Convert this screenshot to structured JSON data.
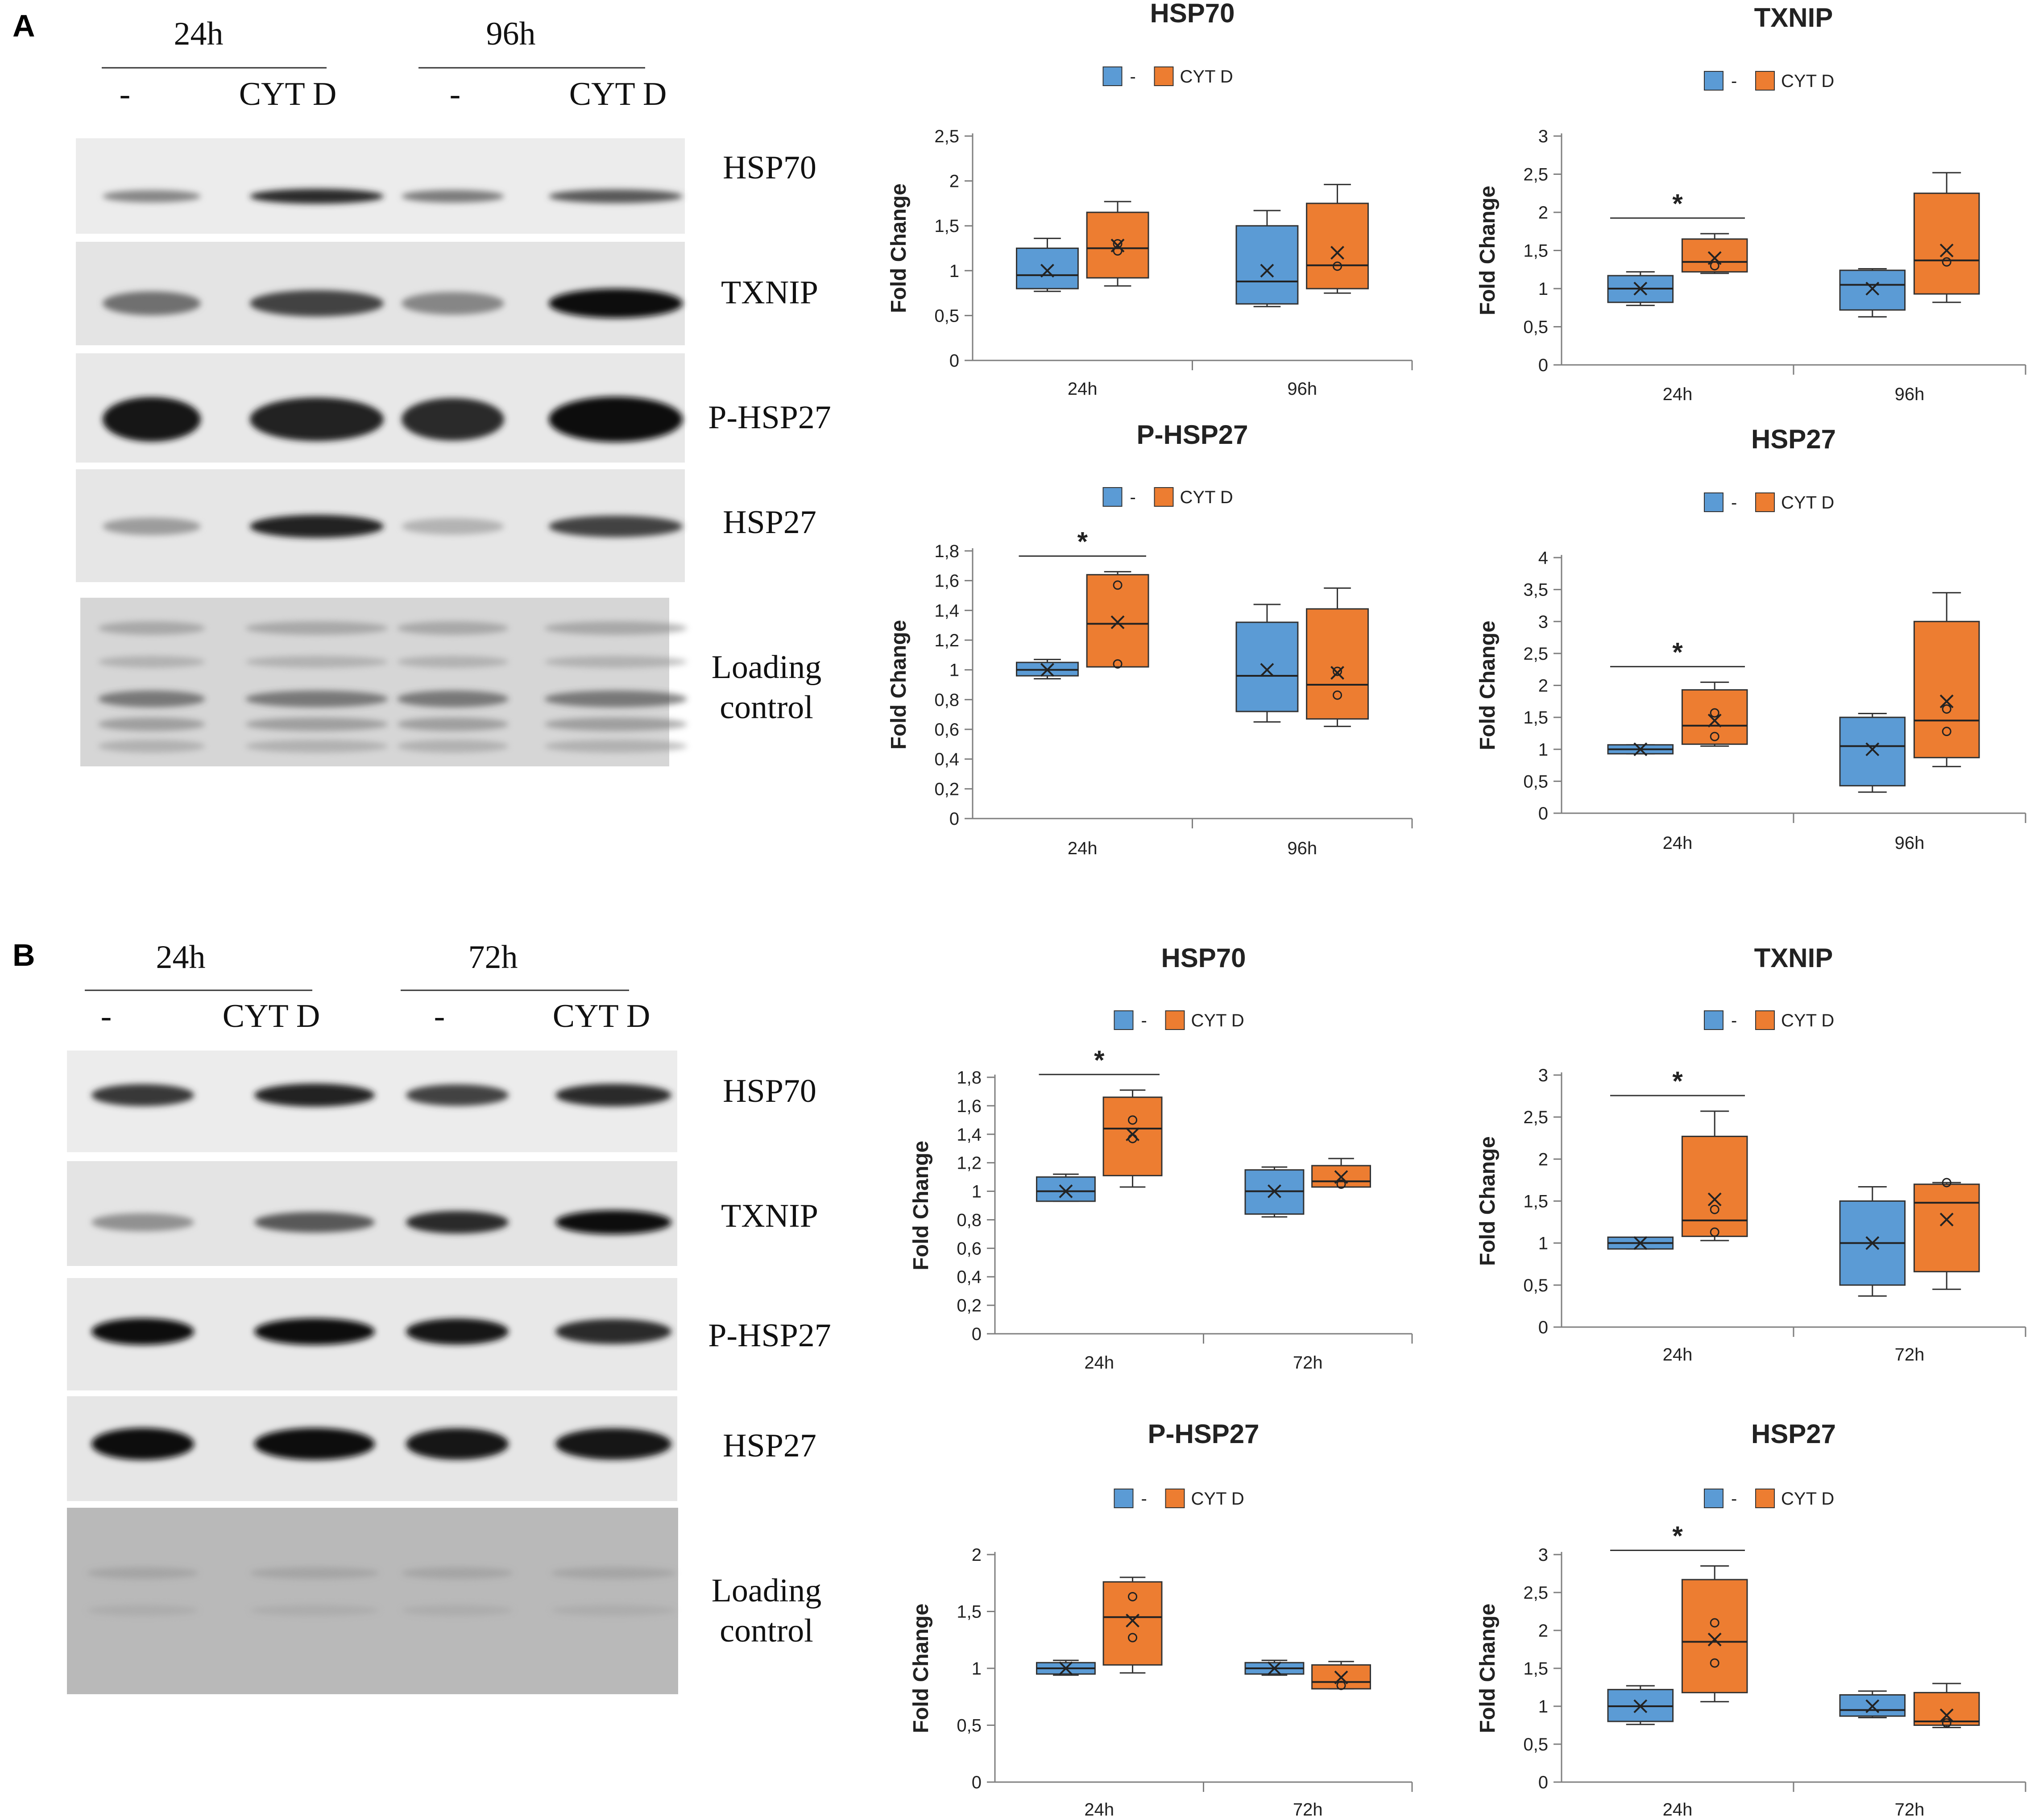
{
  "colors": {
    "control": "#5b9bd5",
    "treated": "#ed7d31",
    "axis": "#7f7f7f",
    "text": "#222222"
  },
  "legend": {
    "control_label": "-",
    "treated_label": "CYT D"
  },
  "panels": [
    {
      "letter": "A",
      "blot": {
        "time1": "24h",
        "time2": "96h",
        "lane_labels": [
          "-",
          "CYT D",
          "-",
          "CYT D"
        ],
        "bands": [
          "HSP70",
          "TXNIP",
          "P-HSP27",
          "HSP27"
        ],
        "loading": [
          "Loading",
          "control"
        ],
        "intensity": [
          [
            0.45,
            0.85,
            0.5,
            0.65
          ],
          [
            0.55,
            0.75,
            0.45,
            1.0
          ],
          [
            0.95,
            0.9,
            0.85,
            1.0
          ],
          [
            0.35,
            0.9,
            0.25,
            0.75
          ]
        ]
      }
    },
    {
      "letter": "B",
      "blot": {
        "time1": "24h",
        "time2": "72h",
        "lane_labels": [
          "-",
          "CYT D",
          "-",
          "CYT D"
        ],
        "bands": [
          "HSP70",
          "TXNIP",
          "P-HSP27",
          "HSP27"
        ],
        "loading": [
          "Loading",
          "control"
        ],
        "intensity": [
          [
            0.8,
            0.9,
            0.75,
            0.85
          ],
          [
            0.4,
            0.65,
            0.85,
            1.0
          ],
          [
            1.0,
            1.0,
            0.95,
            0.85
          ],
          [
            1.0,
            1.0,
            0.95,
            0.95
          ]
        ]
      }
    }
  ],
  "chart_data": [
    {
      "type": "box",
      "title": "HSP70",
      "ylabel": "Fold Change",
      "ylim": [
        0,
        2.5
      ],
      "yticks": [
        "0",
        "0,5",
        "1",
        "1,5",
        "2",
        "2,5"
      ],
      "categories": [
        "24h",
        "96h"
      ],
      "significance": [],
      "series": [
        {
          "name": "-",
          "boxes": [
            {
              "min": 0.77,
              "q1": 0.8,
              "median": 0.95,
              "q3": 1.25,
              "max": 1.36,
              "mean": 1.0,
              "points": []
            },
            {
              "min": 0.6,
              "q1": 0.63,
              "median": 0.88,
              "q3": 1.5,
              "max": 1.67,
              "mean": 1.0,
              "points": []
            }
          ]
        },
        {
          "name": "CYT D",
          "boxes": [
            {
              "min": 0.83,
              "q1": 0.92,
              "median": 1.25,
              "q3": 1.65,
              "max": 1.77,
              "mean": 1.28,
              "points": [
                1.22,
                1.3
              ]
            },
            {
              "min": 0.75,
              "q1": 0.8,
              "median": 1.06,
              "q3": 1.75,
              "max": 1.96,
              "mean": 1.2,
              "points": [
                1.05
              ]
            }
          ]
        }
      ]
    },
    {
      "type": "box",
      "title": "TXNIP",
      "ylabel": "Fold Change",
      "ylim": [
        0,
        3
      ],
      "yticks": [
        "0",
        "0,5",
        "1",
        "1,5",
        "2",
        "2,5",
        "3"
      ],
      "categories": [
        "24h",
        "96h"
      ],
      "significance": [
        0
      ],
      "series": [
        {
          "name": "-",
          "boxes": [
            {
              "min": 0.78,
              "q1": 0.82,
              "median": 1.0,
              "q3": 1.17,
              "max": 1.22,
              "mean": 1.0,
              "points": []
            },
            {
              "min": 0.63,
              "q1": 0.72,
              "median": 1.05,
              "q3": 1.24,
              "max": 1.26,
              "mean": 1.0,
              "points": []
            }
          ]
        },
        {
          "name": "CYT D",
          "boxes": [
            {
              "min": 1.2,
              "q1": 1.22,
              "median": 1.35,
              "q3": 1.65,
              "max": 1.72,
              "mean": 1.4,
              "points": [
                1.3
              ]
            },
            {
              "min": 0.82,
              "q1": 0.93,
              "median": 1.37,
              "q3": 2.25,
              "max": 2.52,
              "mean": 1.5,
              "points": [
                1.35
              ]
            }
          ]
        }
      ]
    },
    {
      "type": "box",
      "title": "P-HSP27",
      "ylabel": "Fold Change",
      "ylim": [
        0,
        1.8
      ],
      "yticks": [
        "0",
        "0,2",
        "0,4",
        "0,6",
        "0,8",
        "1",
        "1,2",
        "1,4",
        "1,6",
        "1,8"
      ],
      "categories": [
        "24h",
        "96h"
      ],
      "significance": [
        0
      ],
      "series": [
        {
          "name": "-",
          "boxes": [
            {
              "min": 0.94,
              "q1": 0.96,
              "median": 1.0,
              "q3": 1.05,
              "max": 1.07,
              "mean": 1.0,
              "points": []
            },
            {
              "min": 0.65,
              "q1": 0.72,
              "median": 0.96,
              "q3": 1.32,
              "max": 1.44,
              "mean": 1.0,
              "points": []
            }
          ]
        },
        {
          "name": "CYT D",
          "boxes": [
            {
              "min": 1.02,
              "q1": 1.02,
              "median": 1.31,
              "q3": 1.64,
              "max": 1.66,
              "mean": 1.32,
              "points": [
                1.57,
                1.04
              ]
            },
            {
              "min": 0.62,
              "q1": 0.67,
              "median": 0.9,
              "q3": 1.41,
              "max": 1.55,
              "mean": 0.98,
              "points": [
                0.83,
                0.99
              ]
            }
          ]
        }
      ]
    },
    {
      "type": "box",
      "title": "HSP27",
      "ylabel": "Fold Change",
      "ylim": [
        0,
        4
      ],
      "yticks": [
        "0",
        "0,5",
        "1",
        "1,5",
        "2",
        "2,5",
        "3",
        "3,5",
        "4"
      ],
      "categories": [
        "24h",
        "96h"
      ],
      "significance": [
        0
      ],
      "series": [
        {
          "name": "-",
          "boxes": [
            {
              "min": 0.93,
              "q1": 0.93,
              "median": 1.0,
              "q3": 1.07,
              "max": 1.07,
              "mean": 1.0,
              "points": []
            },
            {
              "min": 0.33,
              "q1": 0.43,
              "median": 1.05,
              "q3": 1.5,
              "max": 1.56,
              "mean": 1.0,
              "points": []
            }
          ]
        },
        {
          "name": "CYT D",
          "boxes": [
            {
              "min": 1.05,
              "q1": 1.08,
              "median": 1.37,
              "q3": 1.93,
              "max": 2.05,
              "mean": 1.45,
              "points": [
                1.57,
                1.2
              ]
            },
            {
              "min": 0.73,
              "q1": 0.87,
              "median": 1.45,
              "q3": 3.0,
              "max": 3.45,
              "mean": 1.75,
              "points": [
                1.63,
                1.28
              ]
            }
          ]
        }
      ]
    },
    {
      "type": "box",
      "title": "HSP70",
      "ylabel": "Fold Change",
      "ylim": [
        0,
        1.8
      ],
      "yticks": [
        "0",
        "0,2",
        "0,4",
        "0,6",
        "0,8",
        "1",
        "1,2",
        "1,4",
        "1,6",
        "1,8"
      ],
      "categories": [
        "24h",
        "72h"
      ],
      "significance": [
        0
      ],
      "series": [
        {
          "name": "-",
          "boxes": [
            {
              "min": 0.93,
              "q1": 0.93,
              "median": 1.0,
              "q3": 1.1,
              "max": 1.12,
              "mean": 1.0,
              "points": []
            },
            {
              "min": 0.82,
              "q1": 0.84,
              "median": 1.0,
              "q3": 1.15,
              "max": 1.17,
              "mean": 1.0,
              "points": []
            }
          ]
        },
        {
          "name": "CYT D",
          "boxes": [
            {
              "min": 1.03,
              "q1": 1.11,
              "median": 1.44,
              "q3": 1.66,
              "max": 1.71,
              "mean": 1.4,
              "points": [
                1.5,
                1.37
              ]
            },
            {
              "min": 1.03,
              "q1": 1.03,
              "median": 1.07,
              "q3": 1.18,
              "max": 1.23,
              "mean": 1.1,
              "points": [
                1.05
              ]
            }
          ]
        }
      ]
    },
    {
      "type": "box",
      "title": "TXNIP",
      "ylabel": "Fold Change",
      "ylim": [
        0,
        3
      ],
      "yticks": [
        "0",
        "0,5",
        "1",
        "1,5",
        "2",
        "2,5",
        "3"
      ],
      "categories": [
        "24h",
        "72h"
      ],
      "significance": [
        0
      ],
      "series": [
        {
          "name": "-",
          "boxes": [
            {
              "min": 0.93,
              "q1": 0.93,
              "median": 1.0,
              "q3": 1.07,
              "max": 1.07,
              "mean": 1.0,
              "points": []
            },
            {
              "min": 0.37,
              "q1": 0.5,
              "median": 1.0,
              "q3": 1.5,
              "max": 1.67,
              "mean": 1.0,
              "points": []
            }
          ]
        },
        {
          "name": "CYT D",
          "boxes": [
            {
              "min": 1.03,
              "q1": 1.08,
              "median": 1.27,
              "q3": 2.27,
              "max": 2.57,
              "mean": 1.52,
              "points": [
                1.4,
                1.13
              ]
            },
            {
              "min": 0.45,
              "q1": 0.66,
              "median": 1.48,
              "q3": 1.7,
              "max": 1.72,
              "mean": 1.28,
              "points": [
                1.72
              ]
            }
          ]
        }
      ]
    },
    {
      "type": "box",
      "title": "P-HSP27",
      "ylabel": "Fold Change",
      "ylim": [
        0,
        2
      ],
      "yticks": [
        "0",
        "0,5",
        "1",
        "1,5",
        "2"
      ],
      "categories": [
        "24h",
        "72h"
      ],
      "significance": [],
      "series": [
        {
          "name": "-",
          "boxes": [
            {
              "min": 0.94,
              "q1": 0.95,
              "median": 1.0,
              "q3": 1.05,
              "max": 1.07,
              "mean": 1.0,
              "points": []
            },
            {
              "min": 0.94,
              "q1": 0.95,
              "median": 1.0,
              "q3": 1.05,
              "max": 1.07,
              "mean": 1.0,
              "points": []
            }
          ]
        },
        {
          "name": "CYT D",
          "boxes": [
            {
              "min": 0.96,
              "q1": 1.03,
              "median": 1.45,
              "q3": 1.76,
              "max": 1.8,
              "mean": 1.42,
              "points": [
                1.63,
                1.27
              ]
            },
            {
              "min": 0.82,
              "q1": 0.82,
              "median": 0.88,
              "q3": 1.03,
              "max": 1.06,
              "mean": 0.92,
              "points": [
                0.85
              ]
            }
          ]
        }
      ]
    },
    {
      "type": "box",
      "title": "HSP27",
      "ylabel": "Fold Change",
      "ylim": [
        0,
        3
      ],
      "yticks": [
        "0",
        "0,5",
        "1",
        "1,5",
        "2",
        "2,5",
        "3"
      ],
      "categories": [
        "24h",
        "72h"
      ],
      "significance": [
        0
      ],
      "series": [
        {
          "name": "-",
          "boxes": [
            {
              "min": 0.76,
              "q1": 0.8,
              "median": 1.0,
              "q3": 1.22,
              "max": 1.27,
              "mean": 1.0,
              "points": []
            },
            {
              "min": 0.85,
              "q1": 0.87,
              "median": 0.95,
              "q3": 1.15,
              "max": 1.2,
              "mean": 1.0,
              "points": []
            }
          ]
        },
        {
          "name": "CYT D",
          "boxes": [
            {
              "min": 1.06,
              "q1": 1.18,
              "median": 1.85,
              "q3": 2.67,
              "max": 2.85,
              "mean": 1.88,
              "points": [
                2.1,
                1.57
              ]
            },
            {
              "min": 0.72,
              "q1": 0.75,
              "median": 0.8,
              "q3": 1.18,
              "max": 1.3,
              "mean": 0.88,
              "points": [
                0.78
              ]
            }
          ]
        }
      ]
    }
  ]
}
